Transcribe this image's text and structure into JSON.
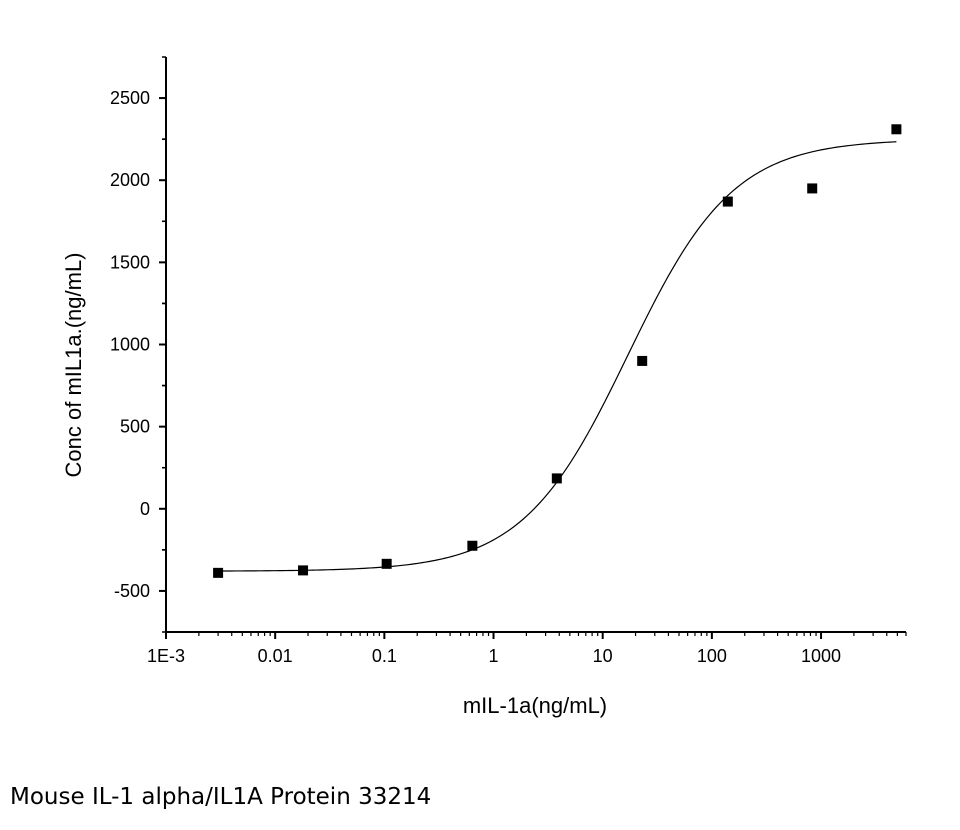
{
  "caption": "Mouse IL-1 alpha/IL1A Protein 33214",
  "chart_data": {
    "type": "scatter",
    "title": "",
    "xlabel": "mIL-1a(ng/mL)",
    "ylabel": "Conc of mIL1a.(ng/mL)",
    "x_scale": "log",
    "xlim": [
      0.001,
      6000
    ],
    "ylim": [
      -750,
      2750
    ],
    "x_ticks": [
      {
        "value": 0.001,
        "label": "1E-3"
      },
      {
        "value": 0.01,
        "label": "0.01"
      },
      {
        "value": 0.1,
        "label": "0.1"
      },
      {
        "value": 1,
        "label": "1"
      },
      {
        "value": 10,
        "label": "10"
      },
      {
        "value": 100,
        "label": "100"
      },
      {
        "value": 1000,
        "label": "1000"
      }
    ],
    "y_ticks": [
      {
        "value": -500,
        "label": "-500"
      },
      {
        "value": 0,
        "label": "0"
      },
      {
        "value": 500,
        "label": "500"
      },
      {
        "value": 1000,
        "label": "1000"
      },
      {
        "value": 1500,
        "label": "1500"
      },
      {
        "value": 2000,
        "label": "2000"
      },
      {
        "value": 2500,
        "label": "2500"
      }
    ],
    "grid": false,
    "series": [
      {
        "x": [
          0.003,
          0.018,
          0.105,
          0.64,
          3.8,
          23,
          140,
          830,
          4900
        ],
        "y": [
          -390,
          -375,
          -335,
          -225,
          185,
          900,
          1870,
          1950,
          2310
        ]
      }
    ],
    "fit": {
      "model": "4PL",
      "bottom": -380,
      "top": 2250,
      "ec50": 17,
      "hill": 0.9,
      "x_range": [
        0.003,
        4900
      ]
    },
    "colors": {
      "marker": "#000000",
      "line": "#000000",
      "axis": "#000000"
    }
  }
}
